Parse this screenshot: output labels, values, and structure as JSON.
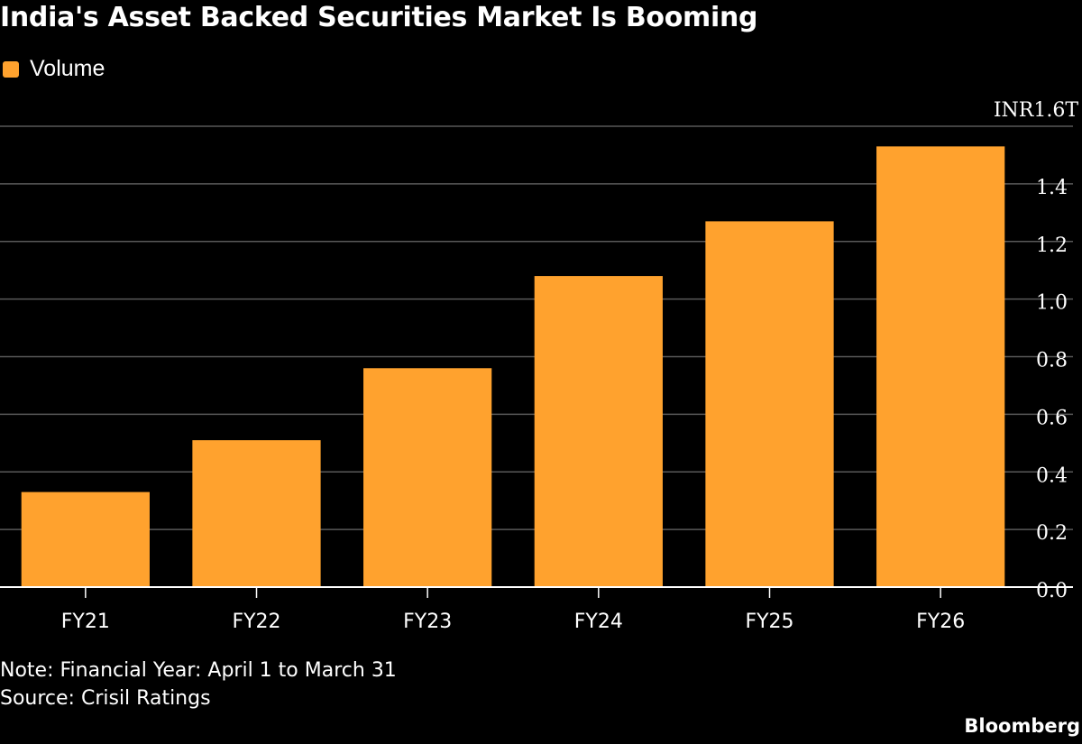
{
  "title": "India's Asset Backed Securities Market Is Booming",
  "legend": {
    "label": "Volume"
  },
  "notes": {
    "note": "Note: Financial Year: April 1 to March 31",
    "source": "Source: Crisil Ratings"
  },
  "brand": "Bloomberg",
  "colors": {
    "bar": "#FFA22E",
    "background": "#000000",
    "grid": "#595959",
    "text": "#FFFFFF"
  },
  "chart_data": {
    "type": "bar",
    "title": "India's Asset Backed Securities Market Is Booming",
    "categories": [
      "FY21",
      "FY22",
      "FY23",
      "FY24",
      "FY25",
      "FY26"
    ],
    "series": [
      {
        "name": "Volume",
        "values": [
          0.33,
          0.51,
          0.76,
          1.08,
          1.27,
          1.53
        ]
      }
    ],
    "ylim": [
      0,
      1.6
    ],
    "yticks": [
      0,
      0.2,
      0.4,
      0.6,
      0.8,
      1.0,
      1.2,
      1.4,
      1.6
    ],
    "ytick_labels": [
      "0.0",
      "0.2",
      "0.4",
      "0.6",
      "0.8",
      "1.0",
      "1.2",
      "1.4",
      "INR1.6T"
    ],
    "y_axis_side": "right",
    "grid": true,
    "legend_position": "top-left"
  }
}
